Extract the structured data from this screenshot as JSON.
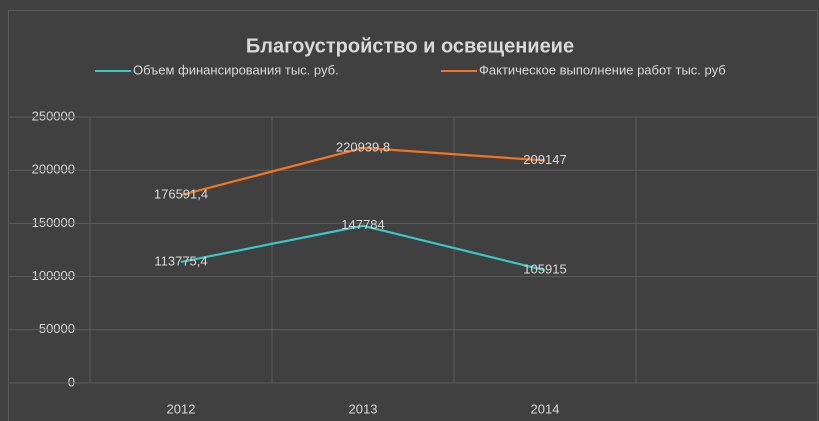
{
  "chart_data": {
    "type": "line",
    "title": "Благоустройство и освещениеие",
    "categories": [
      "2012",
      "2013",
      "2014",
      null
    ],
    "series": [
      {
        "name": "Объем финансирования тыс. руб.",
        "color": "#3cc6c4",
        "values": [
          113775.4,
          147784,
          105915,
          null
        ],
        "value_labels": [
          "113775,4",
          "147784",
          "105915",
          null
        ]
      },
      {
        "name": "Фактическое выполнение работ тыс. руб",
        "color": "#f07422",
        "values": [
          176591.4,
          220939.8,
          209147,
          null
        ],
        "value_labels": [
          "176591,4",
          "220939,8",
          "209147",
          null
        ]
      }
    ],
    "ylim": [
      0,
      250000
    ],
    "yticks": [
      0,
      50000,
      100000,
      150000,
      200000,
      250000
    ],
    "grid": true,
    "legend": "top"
  }
}
